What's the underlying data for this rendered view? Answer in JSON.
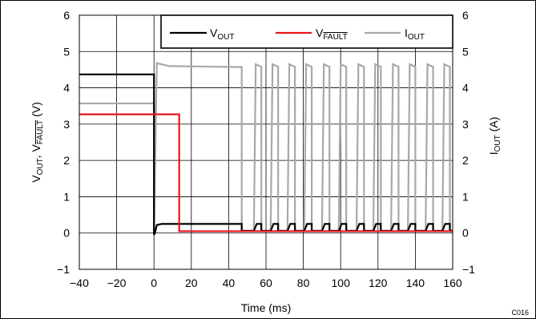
{
  "chart_data": {
    "type": "line",
    "xlabel": "Time (ms)",
    "ylabel_left": {
      "main": "V",
      "sub1": "OUT",
      "sep": ", V",
      "sub2": "FAULT",
      "unit": " (V)"
    },
    "ylabel_right": {
      "main": "I",
      "sub": "OUT",
      "unit": " (A)"
    },
    "xlim": [
      -40,
      160
    ],
    "ylim": [
      -1,
      6
    ],
    "y2lim": [
      -1,
      6
    ],
    "x_ticks": [
      -40,
      -20,
      0,
      20,
      40,
      60,
      80,
      100,
      120,
      140,
      160
    ],
    "y_ticks": [
      -1,
      0,
      1,
      2,
      3,
      4,
      5,
      6
    ],
    "y2_ticks": [
      -1,
      0,
      1,
      2,
      3,
      4,
      5,
      6
    ],
    "grid": true,
    "legend_position": "top-right",
    "figure_id": "C016",
    "pulse_starts_ms": [
      53.5,
      62.5,
      71.5,
      80.5,
      90,
      99,
      108.5,
      117.5,
      127,
      136,
      145.5,
      154.5
    ],
    "series": [
      {
        "name": "VOUT",
        "label_main": "V",
        "label_sub": "OUT",
        "color": "#000000",
        "axis": "left",
        "points": [
          [
            -40,
            4.37
          ],
          [
            0,
            4.37
          ],
          [
            0,
            -0.05
          ],
          [
            0.5,
            0.0
          ],
          [
            1.5,
            0.22
          ],
          [
            4,
            0.25
          ],
          [
            47,
            0.25
          ],
          [
            47,
            0.06
          ],
          [
            53.5,
            0.06
          ],
          [
            55,
            0.25
          ],
          [
            57.5,
            0.25
          ],
          [
            57.5,
            0.06
          ],
          [
            62.5,
            0.06
          ],
          [
            64,
            0.25
          ],
          [
            66.5,
            0.25
          ],
          [
            66.5,
            0.06
          ],
          [
            71.5,
            0.06
          ],
          [
            73,
            0.25
          ],
          [
            75.5,
            0.25
          ],
          [
            75.5,
            0.06
          ],
          [
            80.5,
            0.06
          ],
          [
            82,
            0.25
          ],
          [
            84.5,
            0.25
          ],
          [
            84.5,
            0.06
          ],
          [
            90,
            0.06
          ],
          [
            91.5,
            0.25
          ],
          [
            94,
            0.25
          ],
          [
            94,
            0.06
          ],
          [
            99,
            0.06
          ],
          [
            100.5,
            0.25
          ],
          [
            103,
            0.25
          ],
          [
            103,
            0.06
          ],
          [
            108.5,
            0.06
          ],
          [
            110,
            0.25
          ],
          [
            112.5,
            0.25
          ],
          [
            112.5,
            0.06
          ],
          [
            117.5,
            0.06
          ],
          [
            119,
            0.25
          ],
          [
            121.5,
            0.25
          ],
          [
            121.5,
            0.06
          ],
          [
            127,
            0.06
          ],
          [
            128.5,
            0.25
          ],
          [
            131,
            0.25
          ],
          [
            131,
            0.06
          ],
          [
            136,
            0.06
          ],
          [
            137.5,
            0.25
          ],
          [
            140,
            0.25
          ],
          [
            140,
            0.06
          ],
          [
            145.5,
            0.06
          ],
          [
            147,
            0.25
          ],
          [
            149.5,
            0.25
          ],
          [
            149.5,
            0.06
          ],
          [
            154.5,
            0.06
          ],
          [
            156,
            0.25
          ],
          [
            158.5,
            0.25
          ],
          [
            158.5,
            0.06
          ],
          [
            160,
            0.06
          ]
        ]
      },
      {
        "name": "VFAULT",
        "label_main": "V",
        "label_sub": "FAULT",
        "color": "#e8141b",
        "axis": "left",
        "points": [
          [
            -40,
            3.27
          ],
          [
            13.5,
            3.27
          ],
          [
            13.5,
            0.05
          ],
          [
            160,
            0.05
          ]
        ]
      },
      {
        "name": "IOUT",
        "label_main": "I",
        "label_sub": "OUT",
        "color": "#a8a8a8",
        "axis": "right",
        "points": [
          [
            -40,
            3.57
          ],
          [
            0,
            3.57
          ],
          [
            0,
            0.0
          ],
          [
            1.5,
            4.68
          ],
          [
            8,
            4.6
          ],
          [
            47,
            4.57
          ],
          [
            47,
            0.06
          ],
          [
            53.5,
            0.06
          ],
          [
            54.5,
            4.65
          ],
          [
            56.5,
            4.6
          ],
          [
            57.5,
            4.58
          ],
          [
            57.5,
            0.06
          ],
          [
            62.5,
            0.06
          ],
          [
            63.5,
            4.65
          ],
          [
            65.5,
            4.6
          ],
          [
            66.5,
            4.58
          ],
          [
            66.5,
            0.06
          ],
          [
            71.5,
            0.06
          ],
          [
            72.5,
            4.65
          ],
          [
            74.5,
            4.6
          ],
          [
            75.5,
            4.58
          ],
          [
            75.5,
            0.06
          ],
          [
            80.5,
            0.06
          ],
          [
            81.5,
            4.65
          ],
          [
            83.5,
            4.6
          ],
          [
            84.5,
            4.58
          ],
          [
            84.5,
            0.06
          ],
          [
            90,
            0.06
          ],
          [
            91,
            4.65
          ],
          [
            93,
            4.6
          ],
          [
            94,
            4.58
          ],
          [
            94,
            0.06
          ],
          [
            99,
            0.06
          ],
          [
            100,
            4.65
          ],
          [
            102,
            4.6
          ],
          [
            103,
            4.58
          ],
          [
            103,
            0.06
          ],
          [
            108.5,
            0.06
          ],
          [
            109.5,
            4.65
          ],
          [
            111.5,
            4.6
          ],
          [
            112.5,
            4.58
          ],
          [
            112.5,
            0.06
          ],
          [
            117.5,
            0.06
          ],
          [
            118.5,
            4.65
          ],
          [
            120.5,
            4.6
          ],
          [
            121.5,
            4.58
          ],
          [
            121.5,
            0.06
          ],
          [
            127,
            0.06
          ],
          [
            128,
            4.65
          ],
          [
            130,
            4.6
          ],
          [
            131,
            4.58
          ],
          [
            131,
            0.06
          ],
          [
            136,
            0.06
          ],
          [
            137,
            4.65
          ],
          [
            139,
            4.6
          ],
          [
            140,
            4.58
          ],
          [
            140,
            0.06
          ],
          [
            145.5,
            0.06
          ],
          [
            146.5,
            4.65
          ],
          [
            148.5,
            4.6
          ],
          [
            149.5,
            4.58
          ],
          [
            149.5,
            0.06
          ],
          [
            154.5,
            0.06
          ],
          [
            155.5,
            4.65
          ],
          [
            157.5,
            4.6
          ],
          [
            158.5,
            4.58
          ],
          [
            158.5,
            0.06
          ],
          [
            160,
            0.06
          ]
        ]
      }
    ]
  }
}
